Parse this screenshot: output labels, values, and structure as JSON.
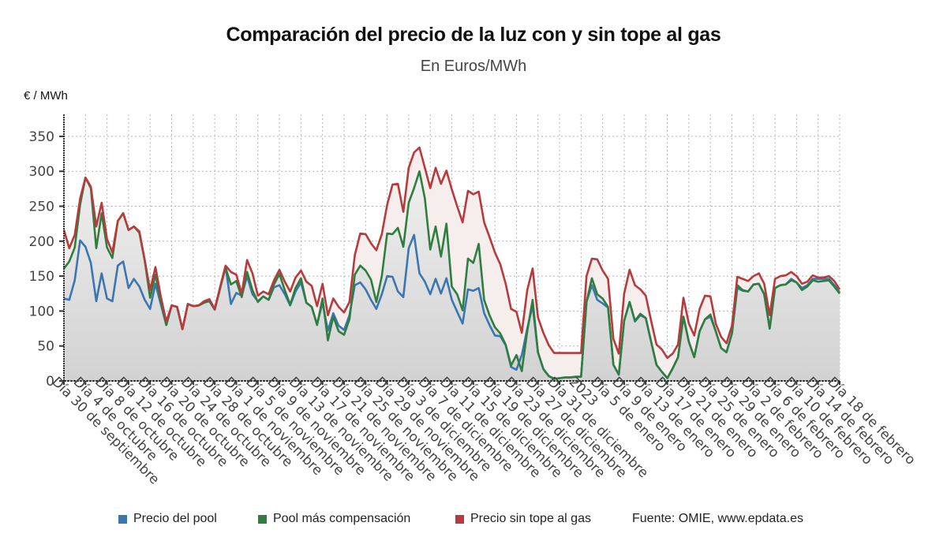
{
  "chart_data": {
    "type": "line",
    "title": "Comparación del precio de la luz con y sin tope al gas",
    "subtitle": "En Euros/MWh",
    "ylabel": "€ / MWh",
    "xlabel": "",
    "ylim": [
      0,
      380
    ],
    "yticks": [
      0,
      50,
      100,
      150,
      200,
      250,
      300,
      350
    ],
    "ytick_labels": [
      "0",
      "50",
      "100",
      "150",
      "200",
      "250",
      "300",
      "350"
    ],
    "grid": true,
    "legend_position": "bottom",
    "x_count": 145,
    "xtick_labels": [
      {
        "index": 0,
        "label": "Día 30 de septiembre"
      },
      {
        "index": 4,
        "label": "Día 4 de octubre"
      },
      {
        "index": 8,
        "label": "Día 8 de octubre"
      },
      {
        "index": 12,
        "label": "Día 12 de octubre"
      },
      {
        "index": 16,
        "label": "Día 16 de octubre"
      },
      {
        "index": 20,
        "label": "Día 20 de octubre"
      },
      {
        "index": 24,
        "label": "Día 24 de octubre"
      },
      {
        "index": 28,
        "label": "Día 28 de octubre"
      },
      {
        "index": 32,
        "label": "Día 1 de noviembre"
      },
      {
        "index": 36,
        "label": "Día 5 de noviembre"
      },
      {
        "index": 40,
        "label": "Día 9 de noviembre"
      },
      {
        "index": 44,
        "label": "Día 13 de noviembre"
      },
      {
        "index": 48,
        "label": "Día 17 de noviembre"
      },
      {
        "index": 52,
        "label": "Día 21 de noviembre"
      },
      {
        "index": 56,
        "label": "Día 25 de noviembre"
      },
      {
        "index": 60,
        "label": "Día 29 de noviembre"
      },
      {
        "index": 64,
        "label": "Día 3 de diciembre"
      },
      {
        "index": 68,
        "label": "Día 7 de diciembre"
      },
      {
        "index": 72,
        "label": "Día 11 de diciembre"
      },
      {
        "index": 76,
        "label": "Día 15 de diciembre"
      },
      {
        "index": 80,
        "label": "Día 19 de diciembre"
      },
      {
        "index": 84,
        "label": "Día 23 de diciembre"
      },
      {
        "index": 88,
        "label": "Día 27 de diciembre"
      },
      {
        "index": 92,
        "label": "Día 31 de diciembre"
      },
      {
        "index": 96,
        "label": "2023"
      },
      {
        "index": 100,
        "label": "Día 5 de enero"
      },
      {
        "index": 104,
        "label": "Día 9 de enero"
      },
      {
        "index": 108,
        "label": "Día 13 de enero"
      },
      {
        "index": 112,
        "label": "Día 17 de enero"
      },
      {
        "index": 116,
        "label": "Día 21 de enero"
      },
      {
        "index": 120,
        "label": "Día 25 de enero"
      },
      {
        "index": 124,
        "label": "Día 29 de enero"
      },
      {
        "index": 128,
        "label": "Día 2 de febrero"
      },
      {
        "index": 132,
        "label": "Día 6 de febrero"
      },
      {
        "index": 136,
        "label": "Día 10 de febrero"
      },
      {
        "index": 140,
        "label": "Día 14 de febrero"
      },
      {
        "index": 144,
        "label": "Día 18 de febrero"
      }
    ],
    "series": [
      {
        "name": "Precio del pool",
        "color": "#3b76b1",
        "values": [
          118,
          116,
          144,
          201,
          192,
          169,
          114,
          154,
          118,
          114,
          165,
          171,
          133,
          146,
          135,
          116,
          103,
          139,
          109,
          80,
          108,
          106,
          74,
          110,
          107,
          108,
          112,
          114,
          102,
          133,
          164,
          110,
          126,
          122,
          150,
          124,
          114,
          121,
          116,
          134,
          137,
          124,
          108,
          128,
          141,
          112,
          106,
          81,
          112,
          72,
          97,
          79,
          73,
          94,
          137,
          141,
          131,
          116,
          103,
          124,
          150,
          149,
          128,
          120,
          190,
          209,
          154,
          142,
          124,
          146,
          125,
          147,
          116,
          99,
          82,
          131,
          129,
          133,
          97,
          80,
          65,
          64,
          51,
          20,
          16,
          37,
          75,
          108,
          41,
          17,
          7,
          3,
          4,
          5,
          5,
          6,
          6,
          113,
          137,
          116,
          111,
          105,
          23,
          9,
          86,
          113,
          85,
          94,
          90,
          56,
          23,
          13,
          4,
          18,
          34,
          92,
          56,
          34,
          71,
          88,
          92,
          71,
          47,
          41,
          68,
          133,
          129,
          128,
          138,
          139,
          124,
          75,
          133,
          137,
          138,
          146,
          141,
          133,
          137,
          146,
          146,
          146,
          146,
          137,
          127
        ]
      },
      {
        "name": "Pool más compensación",
        "color": "#2f7d3f",
        "values": [
          161,
          171,
          191,
          252,
          291,
          276,
          190,
          240,
          191,
          176,
          229,
          240,
          216,
          221,
          212,
          172,
          119,
          152,
          113,
          80,
          108,
          106,
          74,
          110,
          107,
          108,
          112,
          115,
          102,
          133,
          162,
          138,
          143,
          120,
          156,
          130,
          113,
          121,
          116,
          138,
          153,
          130,
          109,
          133,
          147,
          112,
          106,
          80,
          118,
          58,
          92,
          71,
          66,
          88,
          152,
          165,
          158,
          145,
          113,
          150,
          211,
          210,
          219,
          192,
          255,
          276,
          300,
          261,
          188,
          221,
          178,
          225,
          135,
          124,
          101,
          175,
          169,
          196,
          116,
          94,
          77,
          68,
          52,
          22,
          37,
          14,
          71,
          116,
          41,
          17,
          7,
          3,
          4,
          5,
          5,
          6,
          6,
          113,
          147,
          124,
          118,
          106,
          23,
          9,
          86,
          113,
          86,
          96,
          90,
          56,
          23,
          13,
          4,
          18,
          34,
          92,
          56,
          34,
          71,
          88,
          95,
          71,
          47,
          41,
          68,
          137,
          130,
          128,
          138,
          139,
          124,
          75,
          133,
          137,
          138,
          144,
          141,
          130,
          135,
          144,
          142,
          143,
          144,
          135,
          125
        ]
      },
      {
        "name": "Precio sin tope al gas",
        "color": "#b73a3c",
        "values": [
          216,
          190,
          209,
          261,
          291,
          278,
          221,
          255,
          203,
          184,
          229,
          240,
          216,
          221,
          214,
          173,
          130,
          163,
          120,
          85,
          108,
          106,
          74,
          110,
          107,
          108,
          114,
          117,
          103,
          135,
          165,
          156,
          152,
          125,
          173,
          154,
          122,
          128,
          124,
          144,
          159,
          142,
          128,
          148,
          158,
          142,
          136,
          107,
          139,
          94,
          118,
          106,
          98,
          113,
          180,
          211,
          210,
          197,
          187,
          210,
          252,
          281,
          282,
          242,
          305,
          327,
          334,
          305,
          276,
          305,
          282,
          301,
          274,
          250,
          227,
          272,
          267,
          271,
          227,
          206,
          184,
          167,
          139,
          103,
          99,
          69,
          130,
          161,
          91,
          69,
          51,
          40,
          40,
          40,
          40,
          40,
          40,
          150,
          175,
          174,
          158,
          146,
          60,
          39,
          125,
          159,
          137,
          131,
          122,
          86,
          52,
          45,
          33,
          39,
          52,
          119,
          82,
          65,
          103,
          122,
          121,
          82,
          63,
          54,
          79,
          149,
          146,
          143,
          150,
          154,
          139,
          94,
          146,
          150,
          151,
          156,
          150,
          139,
          142,
          151,
          148,
          148,
          150,
          143,
          131
        ]
      }
    ],
    "source": "Fuente: OMIE, www.epdata.es"
  },
  "legend": {
    "items": [
      {
        "label": "Precio del pool",
        "color": "#3b76b1"
      },
      {
        "label": "Pool más compensación",
        "color": "#2f7d3f"
      },
      {
        "label": "Precio sin tope al gas",
        "color": "#b73a3c"
      }
    ],
    "source": "Fuente: OMIE, www.epdata.es"
  }
}
